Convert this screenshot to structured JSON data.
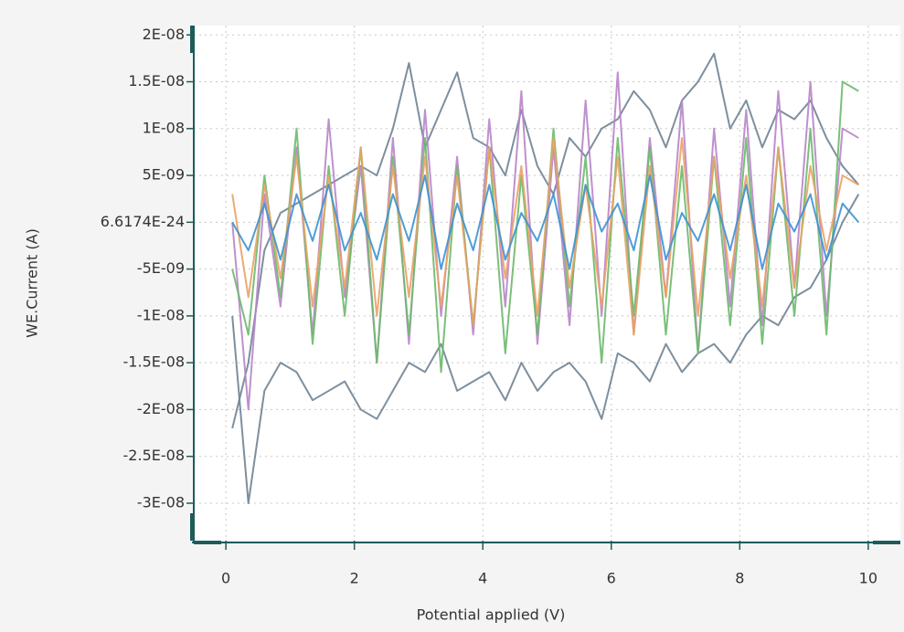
{
  "chart_data": {
    "type": "line",
    "x_label": "Potential applied (V)",
    "y_label": "WE.Current (A)",
    "x": [
      0.1,
      0.35,
      0.6,
      0.85,
      1.1,
      1.35,
      1.6,
      1.85,
      2.1,
      2.35,
      2.6,
      2.85,
      3.1,
      3.35,
      3.6,
      3.85,
      4.1,
      4.35,
      4.6,
      4.85,
      5.1,
      5.35,
      5.6,
      5.85,
      6.1,
      6.35,
      6.6,
      6.85,
      7.1,
      7.35,
      7.6,
      7.85,
      8.1,
      8.35,
      8.6,
      8.85,
      9.1,
      9.35,
      9.6,
      9.85
    ],
    "series": [
      {
        "color": "#6f8394",
        "values": [
          -2.2e-08,
          -1.5e-08,
          -3e-09,
          1e-09,
          2e-09,
          3e-09,
          4e-09,
          5e-09,
          6e-09,
          5e-09,
          1e-08,
          1.7e-08,
          8e-09,
          1.2e-08,
          1.6e-08,
          9e-09,
          8e-09,
          5e-09,
          1.2e-08,
          6e-09,
          3e-09,
          9e-09,
          7e-09,
          1e-08,
          1.1e-08,
          1.4e-08,
          1.2e-08,
          8e-09,
          1.3e-08,
          1.5e-08,
          1.8e-08,
          1e-08,
          1.3e-08,
          8e-09,
          1.2e-08,
          1.1e-08,
          1.3e-08,
          9e-09,
          6e-09,
          4e-09
        ]
      },
      {
        "color": "#6f8394",
        "values": [
          -1e-08,
          -3e-08,
          -1.8e-08,
          -1.5e-08,
          -1.6e-08,
          -1.9e-08,
          -1.8e-08,
          -1.7e-08,
          -2e-08,
          -2.1e-08,
          -1.8e-08,
          -1.5e-08,
          -1.6e-08,
          -1.3e-08,
          -1.8e-08,
          -1.7e-08,
          -1.6e-08,
          -1.9e-08,
          -1.5e-08,
          -1.8e-08,
          -1.6e-08,
          -1.5e-08,
          -1.7e-08,
          -2.1e-08,
          -1.4e-08,
          -1.5e-08,
          -1.7e-08,
          -1.3e-08,
          -1.6e-08,
          -1.4e-08,
          -1.3e-08,
          -1.5e-08,
          -1.2e-08,
          -1e-08,
          -1.1e-08,
          -8e-09,
          -7e-09,
          -4e-09,
          0,
          3e-09
        ]
      },
      {
        "color": "#b884c9",
        "values": [
          0,
          -2e-08,
          3e-09,
          -9e-09,
          8e-09,
          -1.2e-08,
          1.1e-08,
          -8e-09,
          6e-09,
          -1.5e-08,
          9e-09,
          -1.3e-08,
          1.2e-08,
          -1e-08,
          7e-09,
          -1.2e-08,
          1.1e-08,
          -9e-09,
          1.4e-08,
          -1.3e-08,
          8e-09,
          -1.1e-08,
          1.3e-08,
          -1e-08,
          1.6e-08,
          -1.2e-08,
          9e-09,
          -8e-09,
          1.3e-08,
          -1.4e-08,
          1e-08,
          -9e-09,
          1.2e-08,
          -1.1e-08,
          1.4e-08,
          -7e-09,
          1.5e-08,
          -1e-08,
          1e-08,
          9e-09
        ]
      },
      {
        "color": "#6cb96c",
        "values": [
          -5e-09,
          -1.2e-08,
          5e-09,
          -8e-09,
          1e-08,
          -1.3e-08,
          6e-09,
          -1e-08,
          8e-09,
          -1.5e-08,
          7e-09,
          -1.2e-08,
          9e-09,
          -1.6e-08,
          6e-09,
          -1.1e-08,
          8e-09,
          -1.4e-08,
          5e-09,
          -1.2e-08,
          1e-08,
          -9e-09,
          7e-09,
          -1.5e-08,
          9e-09,
          -1e-08,
          8e-09,
          -1.2e-08,
          6e-09,
          -1.4e-08,
          7e-09,
          -1.1e-08,
          9e-09,
          -1.3e-08,
          8e-09,
          -1e-08,
          1e-08,
          -1.2e-08,
          1.5e-08,
          1.4e-08
        ]
      },
      {
        "color": "#e9a264",
        "values": [
          3e-09,
          -8e-09,
          4e-09,
          -6e-09,
          7e-09,
          -9e-09,
          5e-09,
          -7e-09,
          8e-09,
          -1e-08,
          6e-09,
          -8e-09,
          7e-09,
          -9e-09,
          5e-09,
          -1.1e-08,
          8e-09,
          -6e-09,
          6e-09,
          -1e-08,
          9e-09,
          -7e-09,
          4e-09,
          -9e-09,
          7e-09,
          -1.2e-08,
          6e-09,
          -8e-09,
          9e-09,
          -1e-08,
          7e-09,
          -6e-09,
          5e-09,
          -9e-09,
          8e-09,
          -7e-09,
          6e-09,
          -3e-09,
          5e-09,
          4e-09
        ]
      },
      {
        "color": "#3d92d3",
        "values": [
          0,
          -3e-09,
          2e-09,
          -4e-09,
          3e-09,
          -2e-09,
          4e-09,
          -3e-09,
          1e-09,
          -4e-09,
          3e-09,
          -2e-09,
          5e-09,
          -5e-09,
          2e-09,
          -3e-09,
          4e-09,
          -4e-09,
          1e-09,
          -2e-09,
          3e-09,
          -5e-09,
          4e-09,
          -1e-09,
          2e-09,
          -3e-09,
          5e-09,
          -4e-09,
          1e-09,
          -2e-09,
          3e-09,
          -3e-09,
          4e-09,
          -5e-09,
          2e-09,
          -1e-09,
          3e-09,
          -4e-09,
          2e-09,
          0
        ]
      }
    ],
    "xlim": [
      -0.5,
      10.5
    ],
    "xticks": [
      0,
      2,
      4,
      6,
      8,
      10
    ],
    "ylim": [
      -3.4e-08,
      2.1e-08
    ],
    "yticks": [
      {
        "value": 2e-08,
        "label": "2E-08"
      },
      {
        "value": 1.5e-08,
        "label": "1.5E-08"
      },
      {
        "value": 1e-08,
        "label": "1E-08"
      },
      {
        "value": 5e-09,
        "label": "5E-09"
      },
      {
        "value": 6.6174e-24,
        "label": "6.6174E-24"
      },
      {
        "value": -5e-09,
        "label": "-5E-09"
      },
      {
        "value": -1e-08,
        "label": "-1E-08"
      },
      {
        "value": -1.5e-08,
        "label": "-1.5E-08"
      },
      {
        "value": -2e-08,
        "label": "-2E-08"
      },
      {
        "value": -2.5e-08,
        "label": "-2.5E-08"
      },
      {
        "value": -3e-08,
        "label": "-3E-08"
      }
    ],
    "grid": true
  }
}
